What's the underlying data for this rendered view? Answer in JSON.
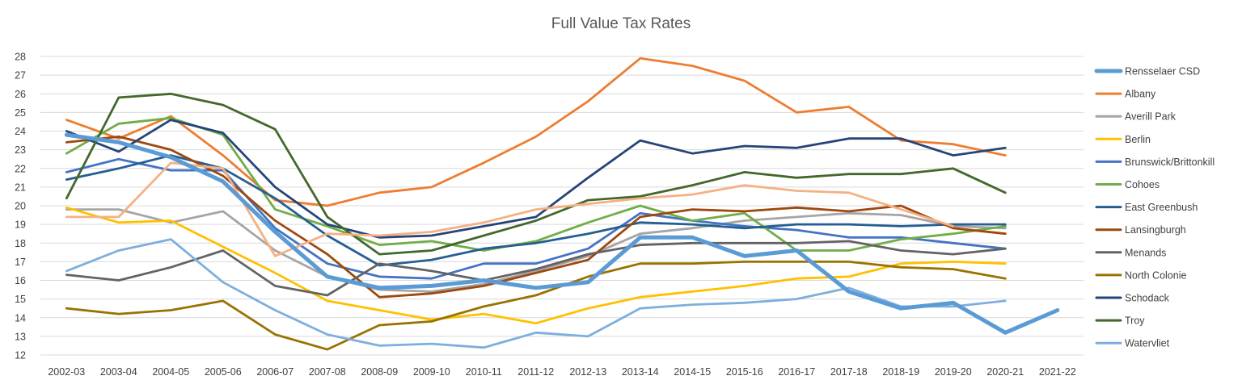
{
  "chart_data": {
    "type": "line",
    "title": "Full Value Tax Rates",
    "xlabel": "",
    "ylabel": "",
    "ylim": [
      12,
      28
    ],
    "yticks": [
      12,
      13,
      14,
      15,
      16,
      17,
      18,
      19,
      20,
      21,
      22,
      23,
      24,
      25,
      26,
      27,
      28
    ],
    "grid": true,
    "legend_position": "right",
    "categories": [
      "2002-03",
      "2003-04",
      "2004-05",
      "2005-06",
      "2006-07",
      "2007-08",
      "2008-09",
      "2009-10",
      "2010-11",
      "2011-12",
      "2012-13",
      "2013-14",
      "2014-15",
      "2015-16",
      "2016-17",
      "2017-18",
      "2018-19",
      "2019-20",
      "2020-21",
      "2021-22"
    ],
    "series": [
      {
        "name": "Rensselaer CSD",
        "color": "#5b9bd5",
        "emphasis": true,
        "values": [
          23.8,
          23.4,
          22.6,
          21.3,
          18.6,
          16.2,
          15.6,
          15.7,
          16.0,
          15.6,
          15.9,
          18.3,
          18.3,
          17.3,
          17.6,
          15.4,
          14.5,
          14.8,
          13.2,
          14.4
        ]
      },
      {
        "name": "Albany",
        "color": "#ed7d31",
        "values": [
          24.6,
          23.6,
          24.8,
          22.7,
          20.3,
          20.0,
          20.7,
          21.0,
          22.3,
          23.7,
          25.6,
          27.9,
          27.5,
          26.7,
          25.0,
          25.3,
          23.5,
          23.3,
          22.7,
          null
        ]
      },
      {
        "name": "Averill Park",
        "color": "#a5a5a5",
        "values": [
          19.8,
          19.8,
          19.1,
          19.7,
          17.6,
          16.2,
          15.5,
          15.4,
          15.8,
          16.5,
          17.3,
          18.5,
          18.8,
          19.2,
          19.4,
          19.6,
          19.5,
          18.9,
          18.8,
          null
        ]
      },
      {
        "name": "Berlin",
        "color": "#ffc000",
        "values": [
          19.9,
          19.1,
          19.2,
          17.8,
          16.4,
          14.9,
          14.4,
          13.9,
          14.2,
          13.7,
          14.5,
          15.1,
          15.4,
          15.7,
          16.1,
          16.2,
          16.9,
          17.0,
          16.9,
          null
        ]
      },
      {
        "name": "Brunswick/Brittonkill",
        "color": "#4472c4",
        "values": [
          21.8,
          22.5,
          21.9,
          21.9,
          18.8,
          16.9,
          16.2,
          16.1,
          16.9,
          16.9,
          17.7,
          19.6,
          19.2,
          18.9,
          18.7,
          18.3,
          18.3,
          18.0,
          17.7,
          null
        ]
      },
      {
        "name": "Cohoes",
        "color": "#70ad47",
        "values": [
          22.8,
          24.4,
          24.7,
          23.8,
          19.8,
          18.9,
          17.9,
          18.1,
          17.6,
          18.1,
          19.1,
          20.0,
          19.2,
          19.6,
          17.6,
          17.6,
          18.2,
          18.5,
          18.9,
          null
        ]
      },
      {
        "name": "East Greenbush",
        "color": "#255e91",
        "values": [
          21.4,
          22.0,
          22.7,
          22.0,
          20.4,
          18.4,
          16.8,
          17.1,
          17.7,
          18.0,
          18.5,
          19.1,
          19.0,
          18.8,
          19.0,
          19.0,
          18.9,
          19.0,
          19.0,
          null
        ]
      },
      {
        "name": "Lansingburgh",
        "color": "#9e480e",
        "values": [
          23.4,
          23.7,
          23.0,
          21.6,
          19.2,
          17.4,
          15.1,
          15.3,
          15.7,
          16.4,
          17.1,
          19.4,
          19.8,
          19.7,
          19.9,
          19.7,
          20.0,
          18.8,
          18.5,
          null
        ]
      },
      {
        "name": "Menands",
        "color": "#636363",
        "values": [
          16.3,
          16.0,
          16.7,
          17.6,
          15.7,
          15.2,
          16.9,
          16.5,
          16.0,
          16.6,
          17.4,
          17.9,
          18.0,
          18.0,
          18.0,
          18.1,
          17.6,
          17.4,
          17.7,
          null
        ]
      },
      {
        "name": "North Colonie",
        "color": "#997300",
        "values": [
          14.5,
          14.2,
          14.4,
          14.9,
          13.1,
          12.3,
          13.6,
          13.8,
          14.6,
          15.2,
          16.2,
          16.9,
          16.9,
          17.0,
          17.0,
          17.0,
          16.7,
          16.6,
          16.1,
          null
        ]
      },
      {
        "name": "Schodack",
        "color": "#264478",
        "values": [
          24.0,
          22.9,
          24.6,
          23.9,
          21.0,
          19.0,
          18.3,
          18.4,
          18.9,
          19.4,
          21.5,
          23.5,
          22.8,
          23.2,
          23.1,
          23.6,
          23.6,
          22.7,
          23.1,
          null
        ]
      },
      {
        "name": "Troy",
        "color": "#43682b",
        "values": [
          20.4,
          25.8,
          26.0,
          25.4,
          24.1,
          19.4,
          17.4,
          17.6,
          18.4,
          19.2,
          20.3,
          20.5,
          21.1,
          21.8,
          21.5,
          21.7,
          21.7,
          22.0,
          20.7,
          null
        ]
      },
      {
        "name": "Watervliet",
        "color": "#7cafdd",
        "values": [
          16.5,
          17.6,
          18.2,
          15.9,
          14.4,
          13.1,
          12.5,
          12.6,
          12.4,
          13.2,
          13.0,
          14.5,
          14.7,
          14.8,
          15.0,
          15.6,
          14.6,
          14.6,
          14.9,
          null
        ]
      },
      {
        "name": "",
        "color": "#f4b183",
        "unlabeled": true,
        "values": [
          19.4,
          19.4,
          22.3,
          22.0,
          17.3,
          18.5,
          18.4,
          18.6,
          19.1,
          19.8,
          20.1,
          20.4,
          20.6,
          21.1,
          20.8,
          20.7,
          19.8,
          18.9,
          null,
          null
        ]
      }
    ]
  }
}
